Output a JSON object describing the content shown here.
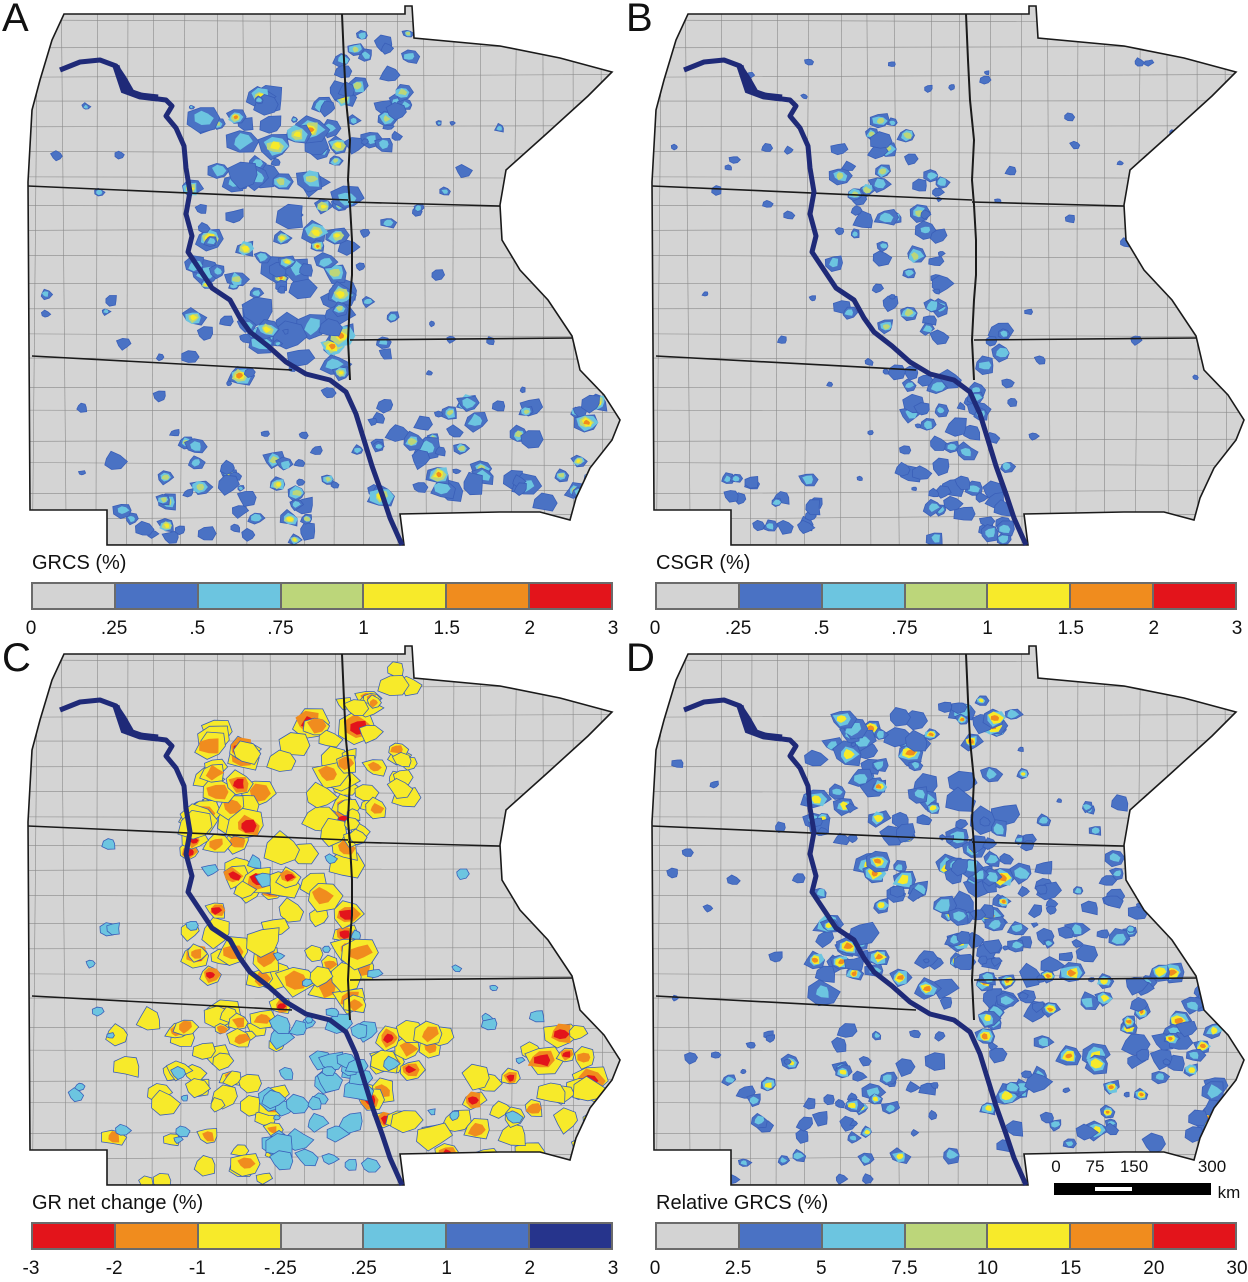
{
  "panels": [
    {
      "letter": "A",
      "legend_title": "GRCS (%)",
      "ticks": [
        "0",
        ".25",
        ".5",
        ".75",
        "1",
        "1.5",
        "2",
        "3"
      ],
      "colors": [
        "#d3d3d3",
        "#4a72c4",
        "#6cc5e0",
        "#bcd67a",
        "#f7ea2a",
        "#f08c1e",
        "#e3141b"
      ],
      "pattern": "grcs"
    },
    {
      "letter": "B",
      "legend_title": "CSGR (%)",
      "ticks": [
        "0",
        ".25",
        ".5",
        ".75",
        "1",
        "1.5",
        "2",
        "3"
      ],
      "colors": [
        "#d3d3d3",
        "#4a72c4",
        "#6cc5e0",
        "#bcd67a",
        "#f7ea2a",
        "#f08c1e",
        "#e3141b"
      ],
      "pattern": "csgr"
    },
    {
      "letter": "C",
      "legend_title": "GR net change (%)",
      "ticks": [
        "-3",
        "-2",
        "-1",
        "-.25",
        ".25",
        "1",
        "2",
        "3"
      ],
      "colors": [
        "#e3141b",
        "#f08c1e",
        "#f7ea2a",
        "#d3d3d3",
        "#6cc5e0",
        "#4a72c4",
        "#26348c"
      ],
      "pattern": "net"
    },
    {
      "letter": "D",
      "legend_title": "Relative GRCS (%)",
      "ticks": [
        "0",
        "2.5",
        "5",
        "7.5",
        "10",
        "15",
        "20",
        "30"
      ],
      "colors": [
        "#d3d3d3",
        "#4a72c4",
        "#6cc5e0",
        "#bcd67a",
        "#f7ea2a",
        "#f08c1e",
        "#e3141b"
      ],
      "pattern": "relative"
    }
  ],
  "scale_bar": {
    "labels": [
      "0",
      "75",
      "150",
      "300"
    ],
    "unit": "km"
  },
  "map_colors": {
    "land": "#d4d4d4",
    "river": "#1f2a78",
    "state_border": "#1a1a1a",
    "county_border": "#8a8a8a"
  }
}
